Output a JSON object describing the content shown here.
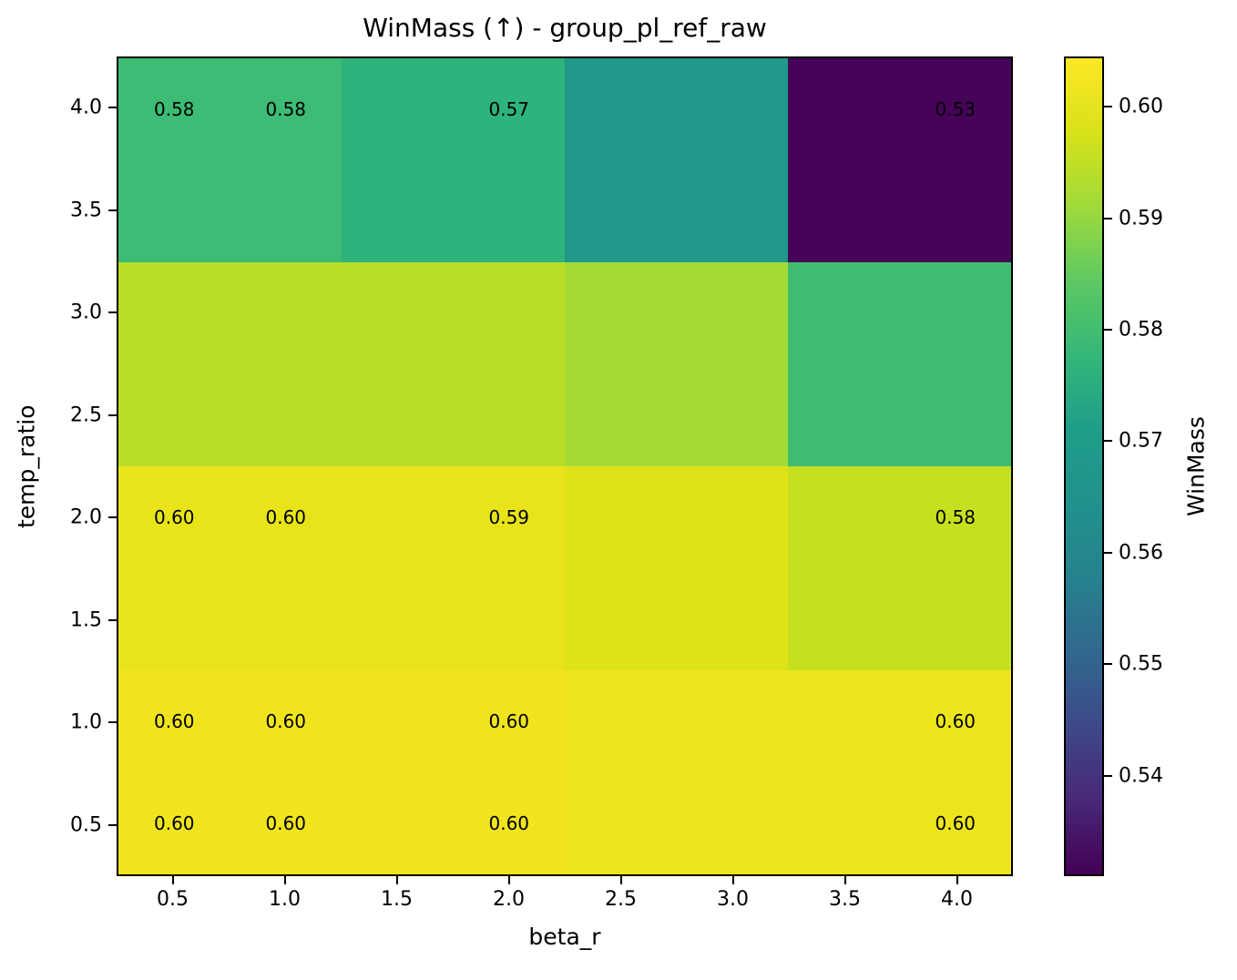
{
  "chart_data": {
    "type": "heatmap",
    "title": "WinMass (↑) - group_pl_ref_raw",
    "xlabel": "beta_r",
    "ylabel": "temp_ratio",
    "colorbar_label": "WinMass",
    "x_values": [
      0.5,
      1.0,
      2.0,
      4.0
    ],
    "y_values": [
      0.5,
      1.0,
      2.0,
      4.0
    ],
    "xlim": [
      0.25,
      4.25
    ],
    "ylim": [
      0.25,
      4.25
    ],
    "x_tick_values": [
      0.5,
      1.0,
      1.5,
      2.0,
      2.5,
      3.0,
      3.5,
      4.0
    ],
    "x_tick_labels": [
      "0.5",
      "1.0",
      "1.5",
      "2.0",
      "2.5",
      "3.0",
      "3.5",
      "4.0"
    ],
    "y_tick_values": [
      0.5,
      1.0,
      1.5,
      2.0,
      2.5,
      3.0,
      3.5,
      4.0
    ],
    "y_tick_labels": [
      "0.5",
      "1.0",
      "1.5",
      "2.0",
      "2.5",
      "3.0",
      "3.5",
      "4.0"
    ],
    "rows": [
      {
        "y": 4.0,
        "values": [
          0.58,
          0.58,
          0.57,
          0.53
        ],
        "labels": [
          "0.58",
          "0.58",
          "0.57",
          "0.53"
        ]
      },
      {
        "y": 2.0,
        "values": [
          0.6,
          0.6,
          0.59,
          0.58
        ],
        "labels": [
          "0.60",
          "0.60",
          "0.59",
          "0.58"
        ]
      },
      {
        "y": 1.0,
        "values": [
          0.6,
          0.6,
          0.6,
          0.6
        ],
        "labels": [
          "0.60",
          "0.60",
          "0.60",
          "0.60"
        ]
      },
      {
        "y": 0.5,
        "values": [
          0.6,
          0.6,
          0.6,
          0.6
        ],
        "labels": [
          "0.60",
          "0.60",
          "0.60",
          "0.60"
        ]
      }
    ],
    "cell_colors": [
      [
        "#3cbc74",
        "#2eb37c",
        "#21998a",
        "#450457"
      ],
      [
        "#b9de28",
        "#b9de28",
        "#a6db35",
        "#3fbc73"
      ],
      [
        "#e8e419",
        "#e8e419",
        "#dee318",
        "#c6e020"
      ],
      [
        "#f0e51d",
        "#f0e51d",
        "#efe51c",
        "#ede51b"
      ]
    ],
    "annotation_color": "#000000",
    "colorbar": {
      "vmin": 0.531,
      "vmax": 0.6045,
      "ticks": [
        0.54,
        0.55,
        0.56,
        0.57,
        0.58,
        0.59,
        0.6
      ],
      "tick_labels": [
        "0.54",
        "0.55",
        "0.56",
        "0.57",
        "0.58",
        "0.59",
        "0.60"
      ],
      "gradient": [
        "#440154",
        "#482878",
        "#3e4989",
        "#31688e",
        "#26828e",
        "#21918c",
        "#1f9e89",
        "#35b779",
        "#5ec962",
        "#9fda3a",
        "#d8e219",
        "#fde725"
      ]
    }
  }
}
